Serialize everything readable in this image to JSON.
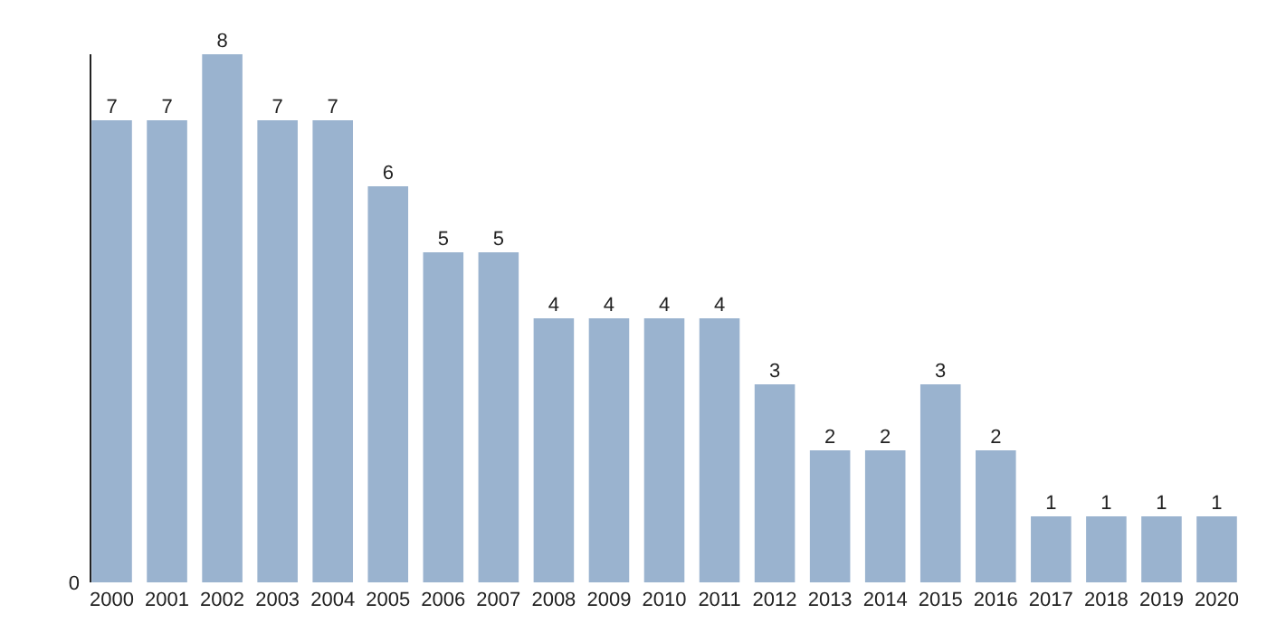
{
  "chart_data": {
    "type": "bar",
    "categories": [
      "2000",
      "2001",
      "2002",
      "2003",
      "2004",
      "2005",
      "2006",
      "2007",
      "2008",
      "2009",
      "2010",
      "2011",
      "2012",
      "2013",
      "2014",
      "2015",
      "2016",
      "2017",
      "2018",
      "2019",
      "2020"
    ],
    "values": [
      7,
      7,
      8,
      7,
      7,
      6,
      5,
      5,
      4,
      4,
      4,
      4,
      3,
      2,
      2,
      3,
      2,
      1,
      1,
      1,
      1
    ],
    "data_labels": true,
    "ylim": [
      0,
      8
    ],
    "color": "#9ab3cf",
    "annotations": [
      "0"
    ]
  }
}
